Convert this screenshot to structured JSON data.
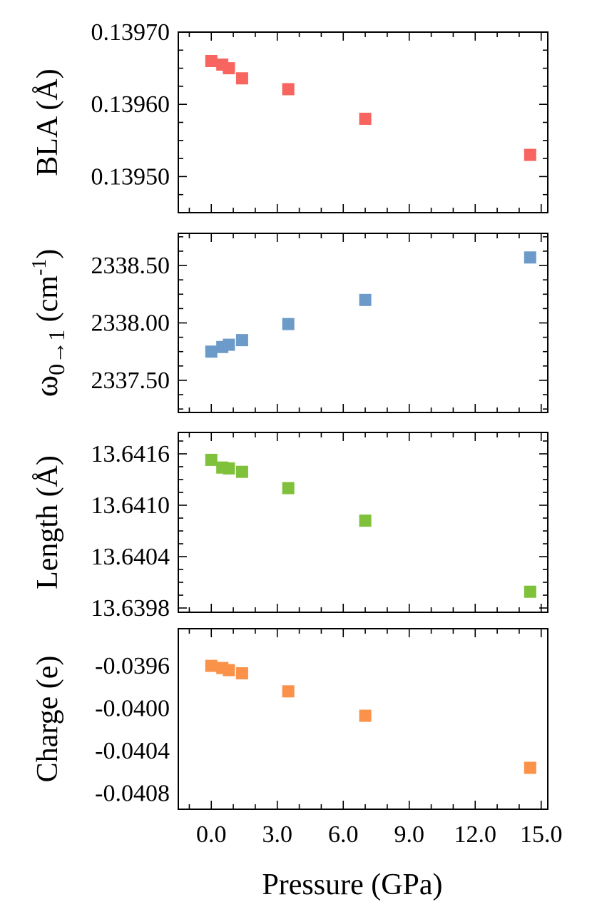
{
  "chart_data": [
    {
      "type": "scatter",
      "ylabel": "BLA (Å)",
      "x": [
        0.0,
        0.5,
        0.8,
        1.4,
        3.5,
        7.0,
        14.5
      ],
      "series": [
        {
          "values": [
            0.13966,
            0.139655,
            0.13965,
            0.139636,
            0.139621,
            0.13958,
            0.13953
          ],
          "color": "#f8645f"
        }
      ],
      "xlim": [
        -1.5,
        15.3
      ],
      "ylim": [
        0.13945,
        0.1397
      ],
      "yticks": [
        0.1395,
        0.1396,
        0.1397
      ],
      "yticklabels": [
        "0.13950",
        "0.13960",
        "0.13970"
      ],
      "grid": false
    },
    {
      "type": "scatter",
      "ylabel": "ω0→1 (cm-1)",
      "ylabel_parts": {
        "main": "ω",
        "sub": "0→1",
        "unit": " (cm",
        "sup": "-1",
        "close": ")"
      },
      "x": [
        0.0,
        0.5,
        0.8,
        1.4,
        3.5,
        7.0,
        14.5
      ],
      "series": [
        {
          "values": [
            2337.75,
            2337.79,
            2337.81,
            2337.85,
            2337.99,
            2338.2,
            2338.57
          ],
          "color": "#6c9bc9"
        }
      ],
      "xlim": [
        -1.5,
        15.3
      ],
      "ylim": [
        2337.22,
        2338.78
      ],
      "yticks": [
        2337.5,
        2338.0,
        2338.5
      ],
      "yticklabels": [
        "2337.50",
        "2338.00",
        "2338.50"
      ],
      "grid": false
    },
    {
      "type": "scatter",
      "ylabel": "Length (Å)",
      "x": [
        0.0,
        0.5,
        0.8,
        1.4,
        3.5,
        7.0,
        14.5
      ],
      "series": [
        {
          "values": [
            13.64153,
            13.64144,
            13.64143,
            13.64139,
            13.6412,
            13.64082,
            13.63999
          ],
          "color": "#7fc13a"
        }
      ],
      "xlim": [
        -1.5,
        15.3
      ],
      "ylim": [
        13.63975,
        13.64185
      ],
      "yticks": [
        13.6398,
        13.6404,
        13.641,
        13.6416
      ],
      "yticklabels": [
        "13.6398",
        "13.6404",
        "13.6410",
        "13.6416"
      ],
      "grid": false
    },
    {
      "type": "scatter",
      "ylabel": "Charge (e)",
      "x": [
        0.0,
        0.5,
        0.8,
        1.4,
        3.5,
        7.0,
        14.5
      ],
      "series": [
        {
          "values": [
            -0.0396,
            -0.03962,
            -0.03964,
            -0.03967,
            -0.03984,
            -0.04007,
            -0.04056
          ],
          "color": "#fb9249"
        }
      ],
      "xlim": [
        -1.5,
        15.3
      ],
      "ylim": [
        -0.04095,
        -0.03925
      ],
      "yticks": [
        -0.0396,
        -0.04,
        -0.0404,
        -0.0408
      ],
      "yticklabels": [
        "-0.0396",
        "-0.0400",
        "-0.0404",
        "-0.0408"
      ],
      "grid": false
    }
  ],
  "xaxis": {
    "label": "Pressure (GPa)",
    "ticks": [
      0,
      3,
      6,
      9,
      12,
      15
    ],
    "ticklabels": [
      "0.0",
      "3.0",
      "6.0",
      "9.0",
      "12.0",
      "15.0"
    ],
    "minor_step": 1
  }
}
